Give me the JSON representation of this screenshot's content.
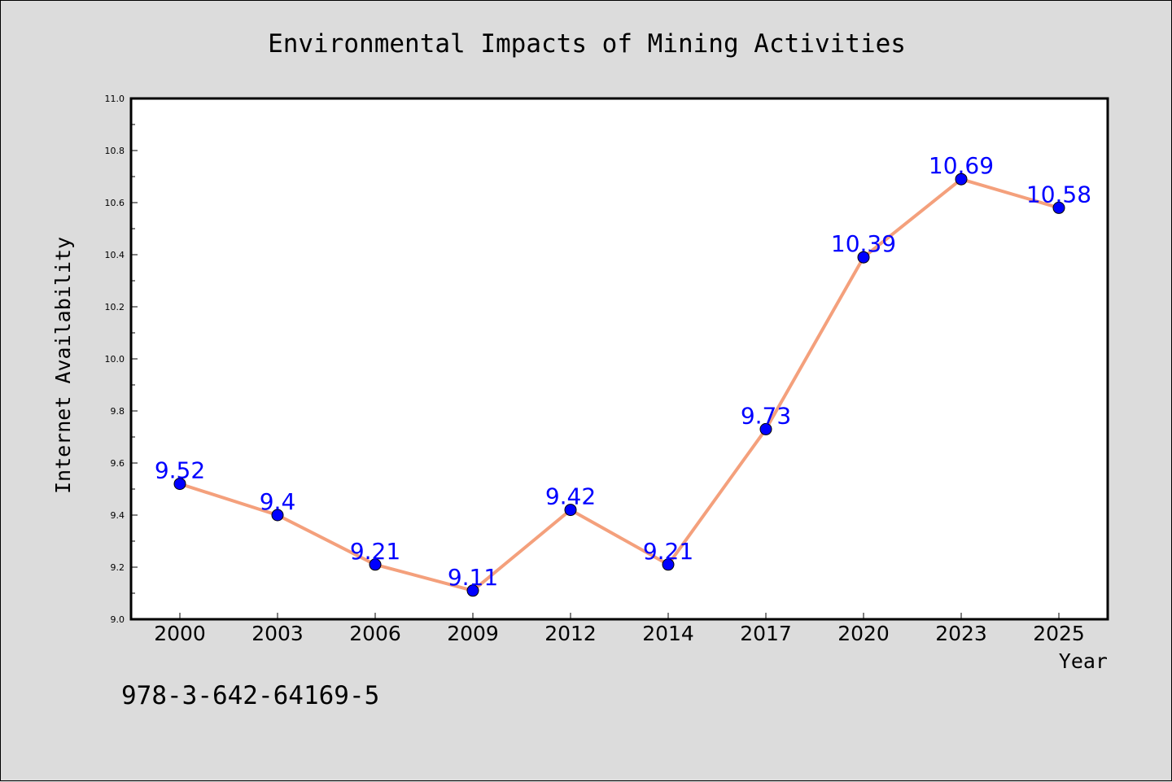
{
  "chart_data": {
    "type": "line",
    "title": "Environmental Impacts of Mining Activities",
    "xlabel": "Year",
    "ylabel": "Internet Availability",
    "categories": [
      "2000",
      "2003",
      "2006",
      "2009",
      "2012",
      "2014",
      "2017",
      "2020",
      "2023",
      "2025"
    ],
    "series": [
      {
        "values": [
          9.52,
          9.4,
          9.21,
          9.11,
          9.42,
          9.21,
          9.73,
          10.39,
          10.69,
          10.58
        ],
        "data_labels": [
          "9.52",
          "9.4",
          "9.21",
          "9.11",
          "9.42",
          "9.21",
          "9.73",
          "10.39",
          "10.69",
          "10.58"
        ],
        "line_color": "#f4a07c",
        "marker_color": "#0000ff",
        "label_color": "#0000ff"
      }
    ],
    "ylim": [
      9.0,
      11.0
    ],
    "y_ticks": [
      "9.0",
      "9.2",
      "9.4",
      "9.6",
      "9.8",
      "10.0",
      "10.2",
      "10.4",
      "10.6",
      "10.8",
      "11.0"
    ],
    "grid": false,
    "legend": "none"
  },
  "annotation": "978-3-642-64169-5",
  "colors": {
    "background": "#dcdcdc",
    "plot_area": "#ffffff"
  }
}
